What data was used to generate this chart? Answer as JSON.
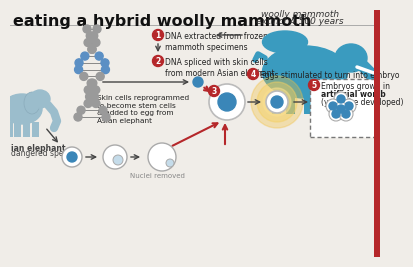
{
  "title": "eating a hybrid woolly mammoth",
  "bg_color": "#f0ede8",
  "step1_label": "DNA extracted from frozen\nmammoth specimens",
  "step2_label": "DNA spliced with skin cells\nfrom modern Asian elephant",
  "step3_label": "Skin cells reprogrammed\nto become stem cells\n& added to egg from\nAsian elephant",
  "step4_label": "Eggs stimulated to turn into embryo",
  "step5_line1": "Embryos grown in",
  "step5_line2": "artificial womb",
  "step5_line3": "(yet to be developed)",
  "mammoth_label1": "woolly mammoth",
  "mammoth_label2": "extinct 4,500 years",
  "elephant_label1": "ian elephant",
  "elephant_label2": "dangered species",
  "nucleus_label": "Nuclei removed",
  "mammoth_color": "#3a9bbf",
  "elephant_color": "#9bbdcc",
  "step_color": "#b5272a",
  "blue_cell": "#3a86b8",
  "light_blue_cell": "#c5dcea",
  "arrow_color": "#444444",
  "red_arrow": "#b5272a",
  "border_color": "#b5272a",
  "dna_gray": "#9a9a9a",
  "dna_blue": "#5b8fc4"
}
